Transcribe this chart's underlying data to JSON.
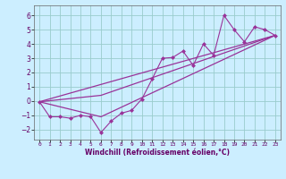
{
  "background_color": "#cceeff",
  "grid_color": "#99cccc",
  "line_color": "#993399",
  "xlabel": "Windchill (Refroidissement éolien,°C)",
  "xlim": [
    -0.5,
    23.5
  ],
  "ylim": [
    -2.7,
    6.7
  ],
  "yticks": [
    -2,
    -1,
    0,
    1,
    2,
    3,
    4,
    5,
    6
  ],
  "xticks": [
    0,
    1,
    2,
    3,
    4,
    5,
    6,
    7,
    8,
    9,
    10,
    11,
    12,
    13,
    14,
    15,
    16,
    17,
    18,
    19,
    20,
    21,
    22,
    23
  ],
  "line1_x": [
    0,
    1,
    2,
    3,
    4,
    5,
    6,
    7,
    8,
    9,
    10,
    11,
    12,
    13,
    14,
    15,
    16,
    17,
    18,
    19,
    20,
    21,
    22,
    23
  ],
  "line1_y": [
    -0.05,
    -1.1,
    -1.1,
    -1.2,
    -1.0,
    -1.1,
    -2.2,
    -1.4,
    -0.85,
    -0.65,
    0.15,
    1.55,
    3.0,
    3.05,
    3.5,
    2.5,
    4.0,
    3.2,
    6.0,
    5.0,
    4.15,
    5.2,
    5.0,
    4.6
  ],
  "line2_x": [
    0,
    23
  ],
  "line2_y": [
    -0.05,
    4.6
  ],
  "line3_x": [
    0,
    6,
    23
  ],
  "line3_y": [
    -0.05,
    -1.1,
    4.6
  ],
  "line4_x": [
    0,
    6,
    23
  ],
  "line4_y": [
    -0.05,
    0.4,
    4.6
  ]
}
